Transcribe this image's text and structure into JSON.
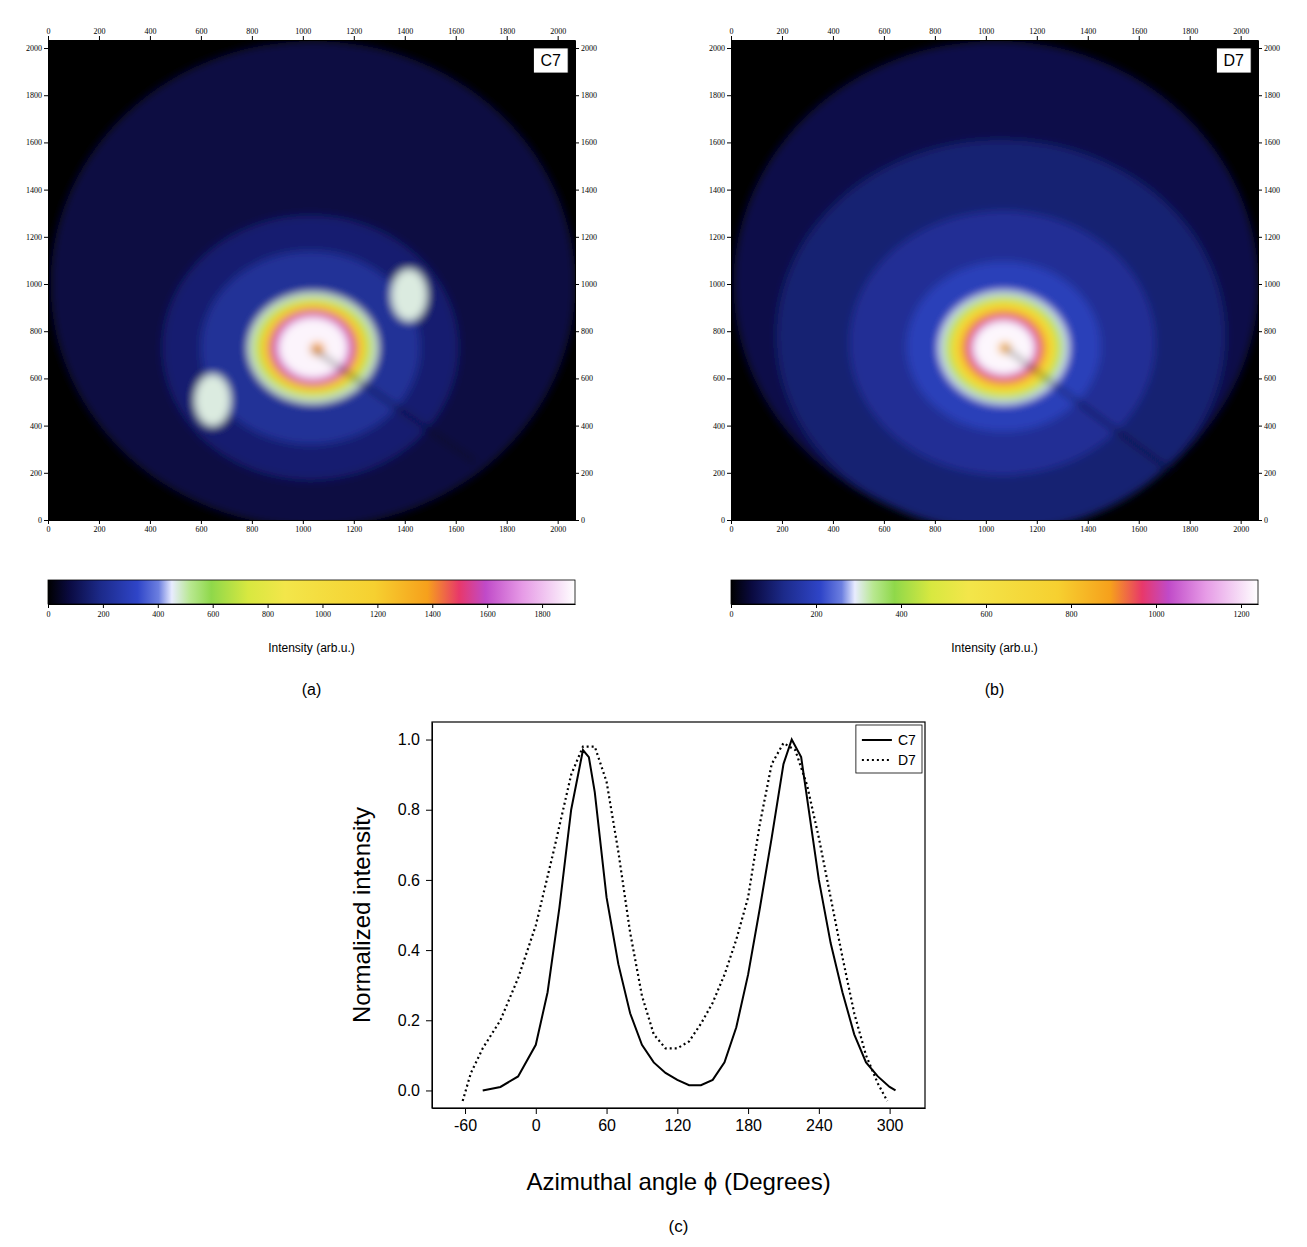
{
  "chart_data": [
    {
      "type": "image",
      "title": "C7",
      "panel": "(a)",
      "xlim": [
        0,
        2068
      ],
      "ylim": [
        0,
        2034
      ],
      "xticks": [
        0,
        200,
        400,
        600,
        800,
        1000,
        1200,
        1400,
        1600,
        1800,
        2000
      ],
      "yticks": [
        0,
        200,
        400,
        600,
        800,
        1000,
        1200,
        1400,
        1600,
        1800,
        2000
      ],
      "blobs": [
        {
          "x": 1040,
          "y": 1000,
          "rx": 1030,
          "ry": 1030,
          "intensity": 80
        },
        {
          "x": 1030,
          "y": 730,
          "rx": 580,
          "ry": 560,
          "intensity": 150
        },
        {
          "x": 1030,
          "y": 730,
          "rx": 430,
          "ry": 410,
          "intensity": 220
        },
        {
          "x": 1417,
          "y": 953,
          "rx": 70,
          "ry": 110,
          "intensity": 470
        },
        {
          "x": 646,
          "y": 508,
          "rx": 70,
          "ry": 110,
          "intensity": 470
        },
        {
          "x": 1040,
          "y": 730,
          "rx": 255,
          "ry": 235,
          "intensity": 470
        },
        {
          "x": 1040,
          "y": 730,
          "rx": 235,
          "ry": 215,
          "intensity": 650
        },
        {
          "x": 1040,
          "y": 730,
          "rx": 210,
          "ry": 195,
          "intensity": 1100
        },
        {
          "x": 1040,
          "y": 730,
          "rx": 180,
          "ry": 168,
          "intensity": 1400
        },
        {
          "x": 1040,
          "y": 730,
          "rx": 165,
          "ry": 155,
          "intensity": 1550
        },
        {
          "x": 1040,
          "y": 730,
          "rx": 150,
          "ry": 142,
          "intensity": 1650
        },
        {
          "x": 1040,
          "y": 730,
          "rx": 135,
          "ry": 128,
          "intensity": 1900
        },
        {
          "x": 1057,
          "y": 725,
          "rx": 28,
          "ry": 28,
          "intensity": 1380
        }
      ],
      "shadow": {
        "x": [
          1040,
          1676
        ],
        "y": [
          725,
          246
        ]
      },
      "colorbar": {
        "label": "Intensity (arb.u.)",
        "range": [
          0,
          1920
        ],
        "ticks": [
          0,
          200,
          400,
          600,
          800,
          1000,
          1200,
          1400,
          1600,
          1800
        ]
      }
    },
    {
      "type": "image",
      "title": "D7",
      "panel": "(b)",
      "xlim": [
        0,
        2068
      ],
      "ylim": [
        0,
        2034
      ],
      "xticks": [
        0,
        200,
        400,
        600,
        800,
        1000,
        1200,
        1400,
        1600,
        1800,
        2000
      ],
      "yticks": [
        0,
        200,
        400,
        600,
        800,
        1000,
        1200,
        1400,
        1600,
        1800,
        2000
      ],
      "blobs": [
        {
          "x": 1040,
          "y": 1000,
          "rx": 1030,
          "ry": 1030,
          "intensity": 60
        },
        {
          "x": 1060,
          "y": 780,
          "rx": 880,
          "ry": 830,
          "intensity": 100
        },
        {
          "x": 1065,
          "y": 750,
          "rx": 600,
          "ry": 560,
          "intensity": 140
        },
        {
          "x": 1070,
          "y": 735,
          "rx": 380,
          "ry": 360,
          "intensity": 190
        },
        {
          "x": 1070,
          "y": 730,
          "rx": 255,
          "ry": 240,
          "intensity": 290
        },
        {
          "x": 1070,
          "y": 730,
          "rx": 235,
          "ry": 222,
          "intensity": 380
        },
        {
          "x": 1070,
          "y": 730,
          "rx": 215,
          "ry": 205,
          "intensity": 520
        },
        {
          "x": 1070,
          "y": 730,
          "rx": 195,
          "ry": 185,
          "intensity": 750
        },
        {
          "x": 1070,
          "y": 730,
          "rx": 165,
          "ry": 158,
          "intensity": 900
        },
        {
          "x": 1070,
          "y": 730,
          "rx": 150,
          "ry": 143,
          "intensity": 960
        },
        {
          "x": 1070,
          "y": 730,
          "rx": 135,
          "ry": 128,
          "intensity": 1050
        },
        {
          "x": 1070,
          "y": 730,
          "rx": 120,
          "ry": 114,
          "intensity": 1230
        },
        {
          "x": 1075,
          "y": 729,
          "rx": 25,
          "ry": 25,
          "intensity": 850
        }
      ],
      "shadow": {
        "x": [
          1075,
          1801
        ],
        "y": [
          729,
          148
        ]
      },
      "colorbar": {
        "label": "Intensity (arb.u.)",
        "range": [
          0,
          1240
        ],
        "ticks": [
          0,
          200,
          400,
          600,
          800,
          1000,
          1200
        ]
      }
    },
    {
      "type": "line",
      "panel": "(c)",
      "x_label": "Azimuthal angle ϕ (Degrees)",
      "y_label": "Normalized intensity",
      "xlim": [
        -88,
        330
      ],
      "ylim": [
        -0.05,
        1.05
      ],
      "xticks": [
        -60,
        0,
        60,
        120,
        180,
        240,
        300
      ],
      "yticks": [
        {
          "value": 0,
          "label": "0.0"
        },
        {
          "value": 0.2,
          "label": "0.2"
        },
        {
          "value": 0.4,
          "label": "0.4"
        },
        {
          "value": 0.6,
          "label": "0.6"
        },
        {
          "value": 0.8,
          "label": "0.8"
        },
        {
          "value": 1,
          "label": "1.0"
        }
      ],
      "legend": "upper right",
      "series": [
        {
          "name": "C7",
          "color": "#000000",
          "line_style": "solid",
          "x": [
            -45,
            -30,
            -15,
            0,
            10,
            20,
            30,
            40,
            45,
            50,
            60,
            70,
            80,
            90,
            100,
            110,
            120,
            130,
            140,
            150,
            160,
            170,
            180,
            190,
            200,
            210,
            217,
            225,
            240,
            250,
            260,
            270,
            280,
            290,
            300,
            305
          ],
          "values": [
            0.0,
            0.01,
            0.04,
            0.13,
            0.28,
            0.52,
            0.8,
            0.97,
            0.95,
            0.85,
            0.55,
            0.36,
            0.22,
            0.13,
            0.08,
            0.05,
            0.03,
            0.015,
            0.015,
            0.03,
            0.08,
            0.18,
            0.33,
            0.52,
            0.72,
            0.93,
            1.0,
            0.95,
            0.6,
            0.42,
            0.28,
            0.16,
            0.08,
            0.04,
            0.01,
            0.0
          ]
        },
        {
          "name": "D7",
          "color": "#000000",
          "line_style": "dotted",
          "x": [
            -62,
            -55,
            -45,
            -30,
            -15,
            0,
            15,
            30,
            40,
            50,
            60,
            70,
            80,
            90,
            100,
            110,
            120,
            130,
            140,
            150,
            160,
            170,
            180,
            190,
            200,
            210,
            220,
            230,
            240,
            250,
            260,
            270,
            280,
            290,
            298
          ],
          "values": [
            -0.03,
            0.05,
            0.12,
            0.2,
            0.32,
            0.47,
            0.68,
            0.9,
            0.98,
            0.98,
            0.88,
            0.68,
            0.45,
            0.27,
            0.16,
            0.12,
            0.12,
            0.14,
            0.19,
            0.25,
            0.33,
            0.43,
            0.55,
            0.76,
            0.93,
            0.99,
            0.97,
            0.87,
            0.72,
            0.55,
            0.38,
            0.22,
            0.1,
            0.02,
            -0.03
          ]
        }
      ]
    }
  ]
}
